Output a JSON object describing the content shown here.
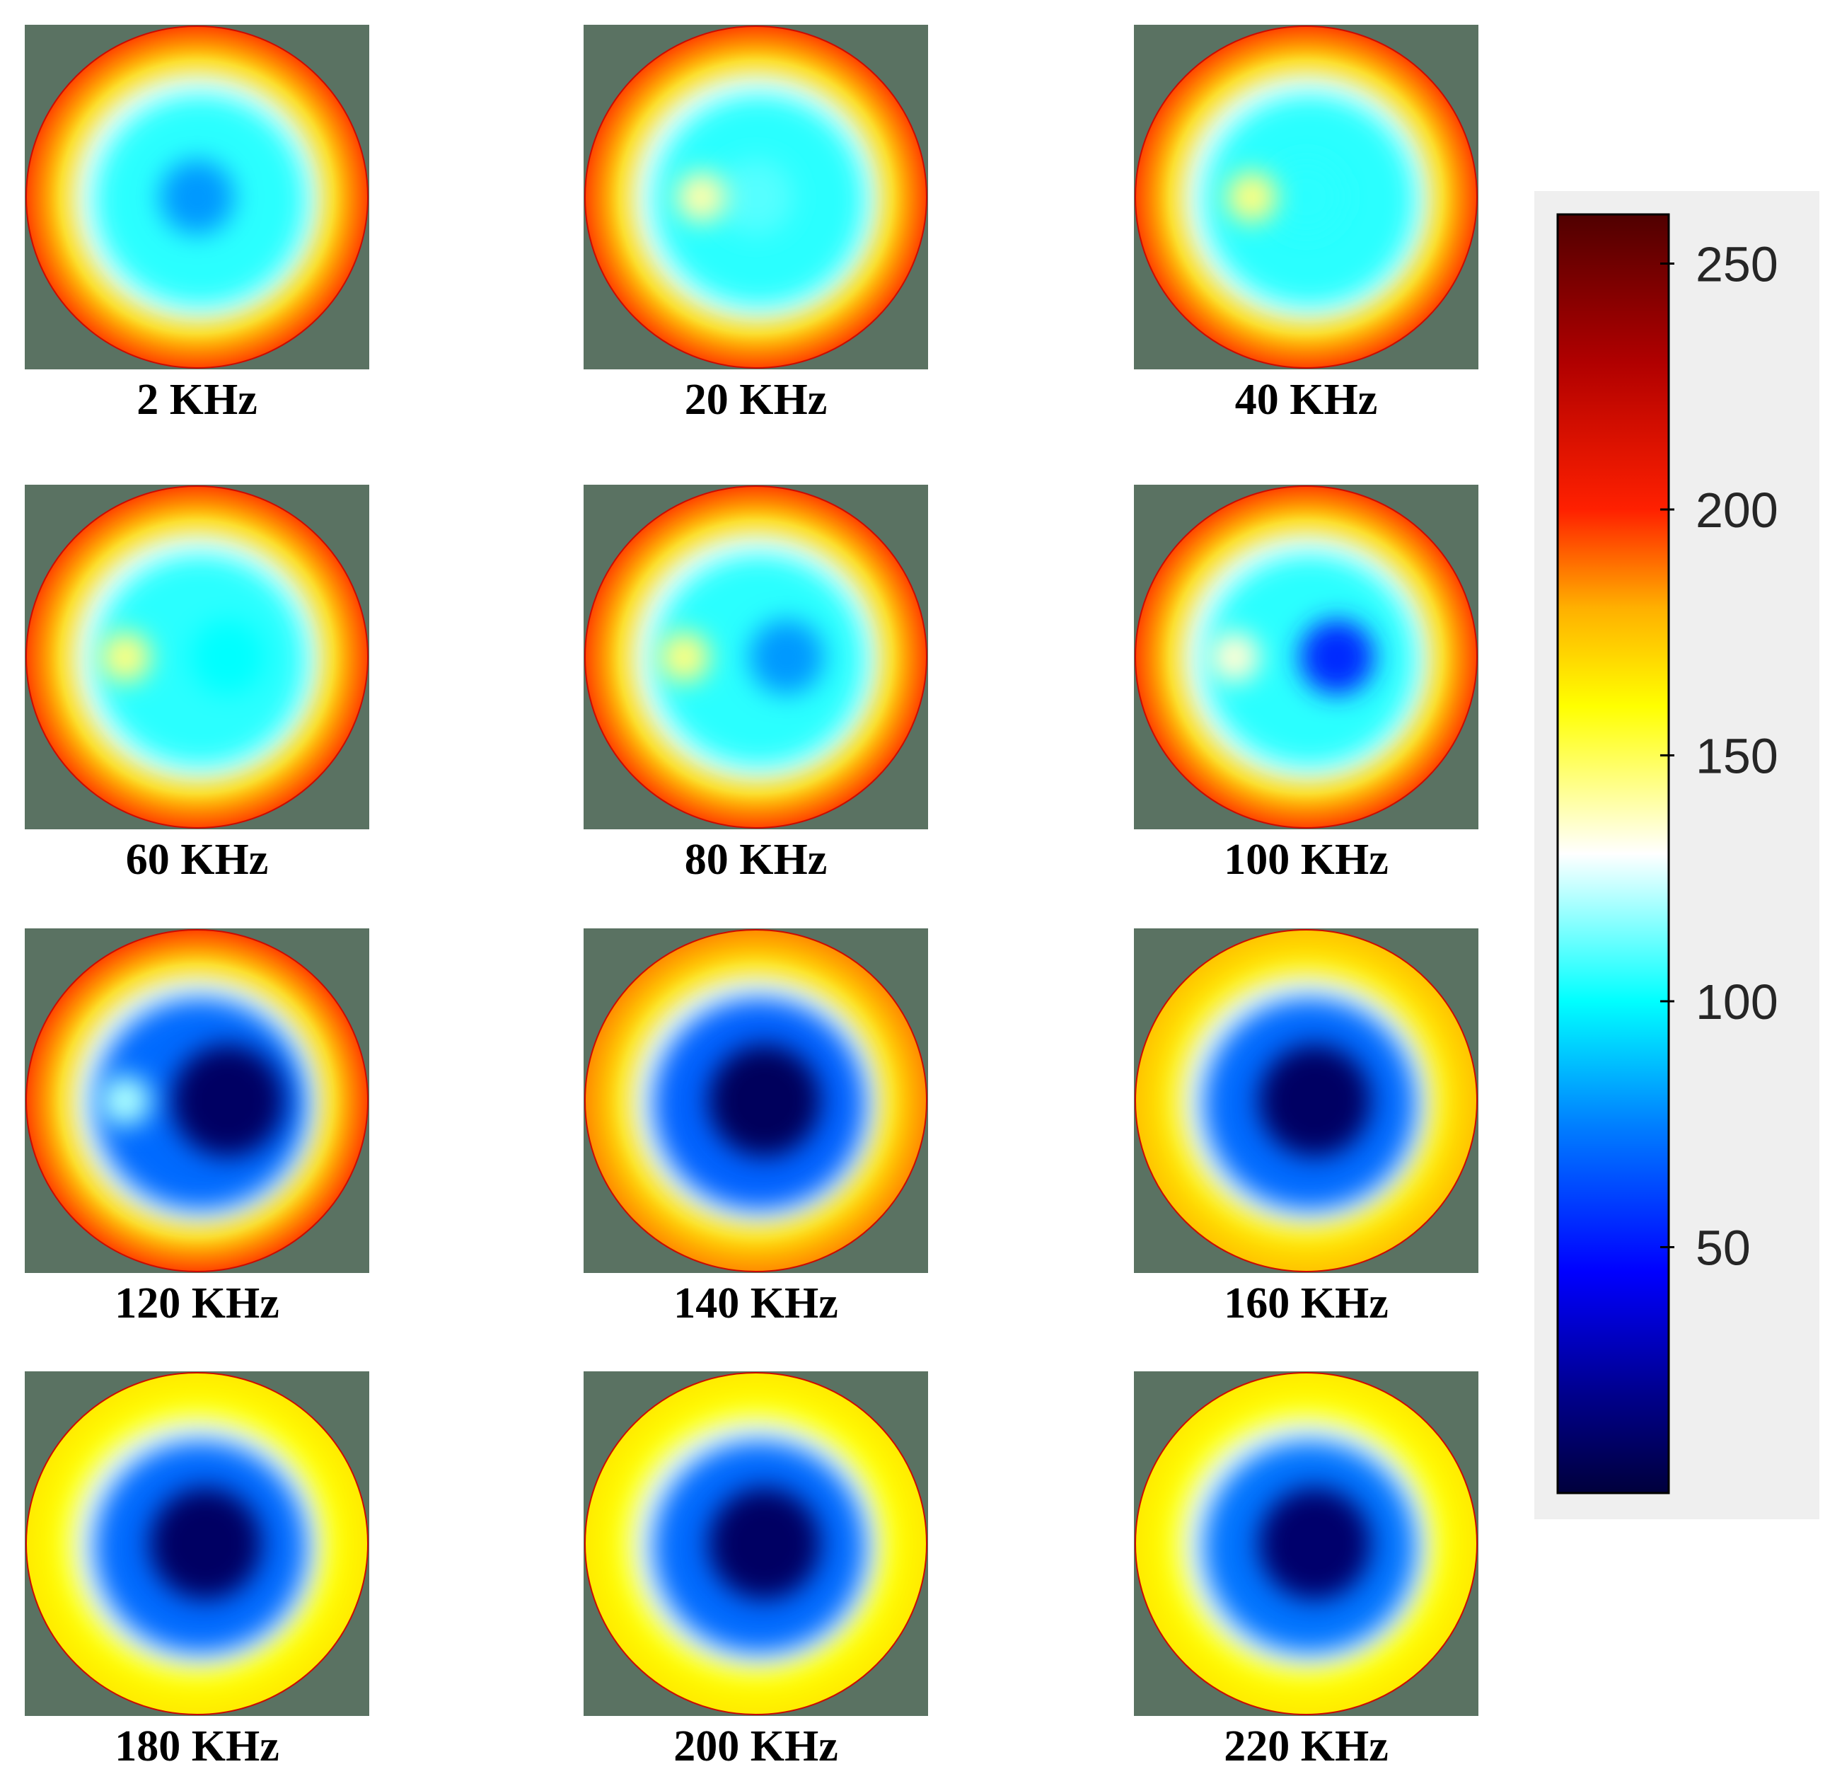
{
  "chart_data": {
    "type": "heatmap",
    "description_type": "small-multiples of circular reconstructed images",
    "panels": [
      {
        "label": "2 KHz",
        "center_value": 80,
        "lobe_value": null,
        "ring_value": 170,
        "edge_value": 195
      },
      {
        "label": "20 KHz",
        "center_value": 110,
        "lobe_value": 140,
        "ring_value": 170,
        "edge_value": 195
      },
      {
        "label": "40 KHz",
        "center_value": 105,
        "lobe_value": 145,
        "ring_value": 170,
        "edge_value": 195
      },
      {
        "label": "60 KHz",
        "center_value": 100,
        "lobe_value": 145,
        "ring_value": 170,
        "edge_value": 195
      },
      {
        "label": "80 KHz",
        "center_value": 80,
        "lobe_value": 145,
        "ring_value": 170,
        "edge_value": 195
      },
      {
        "label": "100 KHz",
        "center_value": 55,
        "lobe_value": 135,
        "ring_value": 170,
        "edge_value": 195
      },
      {
        "label": "120 KHz",
        "center_value": 10,
        "lobe_value": 120,
        "ring_value": 170,
        "edge_value": 195
      },
      {
        "label": "140 KHz",
        "center_value": 8,
        "lobe_value": null,
        "ring_value": 168,
        "edge_value": 185
      },
      {
        "label": "160 KHz",
        "center_value": 10,
        "lobe_value": null,
        "ring_value": 165,
        "edge_value": 175
      },
      {
        "label": "180 KHz",
        "center_value": 10,
        "lobe_value": null,
        "ring_value": 160,
        "edge_value": 165
      },
      {
        "label": "200 KHz",
        "center_value": 10,
        "lobe_value": null,
        "ring_value": 160,
        "edge_value": 165
      },
      {
        "label": "220 KHz",
        "center_value": 12,
        "lobe_value": null,
        "ring_value": 160,
        "edge_value": 165
      }
    ],
    "colorbar": {
      "colormap": "jet-like (dark blue - blue - cyan - white - yellow - orange - red - dark red)",
      "range": [
        0,
        260
      ],
      "ticks": [
        "250",
        "200",
        "150",
        "100",
        "50"
      ],
      "tick_values": [
        250,
        200,
        150,
        100,
        50
      ]
    },
    "background_color": "#5a7262"
  },
  "colors": {
    "background": "#5a7262",
    "colorbar_panel": "#efefef"
  }
}
